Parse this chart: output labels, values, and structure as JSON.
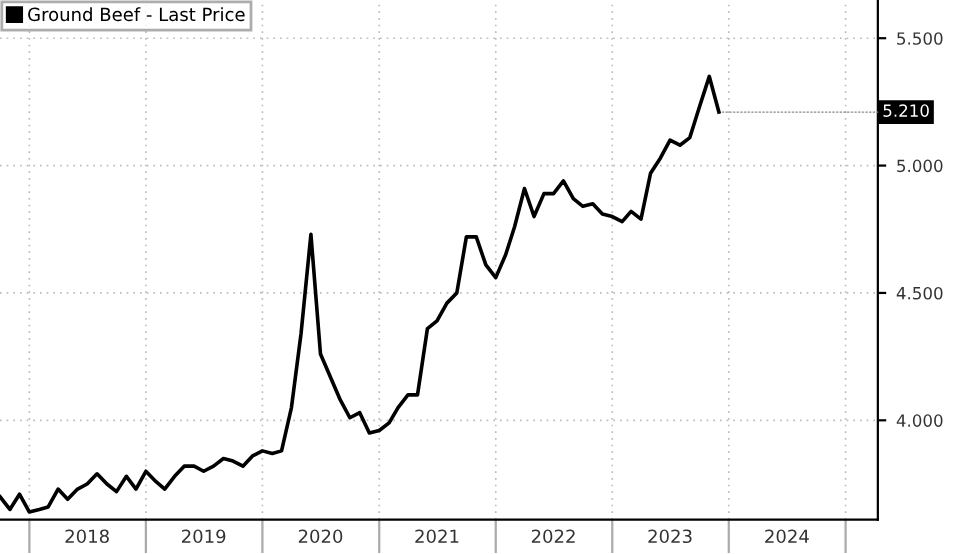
{
  "chart_data": {
    "type": "line",
    "x": [
      "2017-10",
      "2017-11",
      "2017-12",
      "2018-01",
      "2018-02",
      "2018-03",
      "2018-04",
      "2018-05",
      "2018-06",
      "2018-07",
      "2018-08",
      "2018-09",
      "2018-10",
      "2018-11",
      "2018-12",
      "2019-01",
      "2019-02",
      "2019-03",
      "2019-04",
      "2019-05",
      "2019-06",
      "2019-07",
      "2019-08",
      "2019-09",
      "2019-10",
      "2019-11",
      "2019-12",
      "2020-01",
      "2020-02",
      "2020-03",
      "2020-04",
      "2020-05",
      "2020-06",
      "2020-07",
      "2020-08",
      "2020-09",
      "2020-10",
      "2020-11",
      "2020-12",
      "2021-01",
      "2021-02",
      "2021-03",
      "2021-04",
      "2021-05",
      "2021-06",
      "2021-07",
      "2021-08",
      "2021-09",
      "2021-10",
      "2021-11",
      "2021-12",
      "2022-01",
      "2022-02",
      "2022-03",
      "2022-04",
      "2022-05",
      "2022-06",
      "2022-07",
      "2022-08",
      "2022-09",
      "2022-10",
      "2022-11",
      "2022-12",
      "2023-01",
      "2023-02",
      "2023-03",
      "2023-04",
      "2023-05",
      "2023-06",
      "2023-07",
      "2023-08",
      "2023-09",
      "2023-10",
      "2023-11",
      "2023-12"
    ],
    "series": [
      {
        "name": "Ground Beef - Last Price",
        "color": "#000000",
        "values": [
          3.7,
          3.65,
          3.71,
          3.64,
          3.65,
          3.66,
          3.73,
          3.69,
          3.73,
          3.75,
          3.79,
          3.75,
          3.72,
          3.78,
          3.73,
          3.8,
          3.76,
          3.73,
          3.78,
          3.82,
          3.82,
          3.8,
          3.82,
          3.85,
          3.84,
          3.82,
          3.86,
          3.88,
          3.87,
          3.88,
          4.05,
          4.34,
          4.73,
          4.26,
          4.17,
          4.08,
          4.01,
          4.03,
          3.95,
          3.96,
          3.99,
          4.05,
          4.1,
          4.1,
          4.36,
          4.39,
          4.46,
          4.5,
          4.72,
          4.72,
          4.61,
          4.56,
          4.65,
          4.76,
          4.91,
          4.8,
          4.89,
          4.89,
          4.94,
          4.87,
          4.84,
          4.85,
          4.81,
          4.8,
          4.78,
          4.82,
          4.79,
          4.97,
          5.03,
          5.1,
          5.08,
          5.11,
          5.23,
          5.35,
          5.21
        ]
      }
    ],
    "xlim": [
      "2017-10-01",
      "2025-04-12"
    ],
    "xticks": [
      {
        "value": "2018-01-01",
        "label": null
      },
      {
        "value": "2018-07-01",
        "label": "2018"
      },
      {
        "value": "2019-01-01",
        "label": null
      },
      {
        "value": "2019-07-01",
        "label": "2019"
      },
      {
        "value": "2020-01-01",
        "label": null
      },
      {
        "value": "2020-07-01",
        "label": "2020"
      },
      {
        "value": "2021-01-01",
        "label": null
      },
      {
        "value": "2021-07-01",
        "label": "2021"
      },
      {
        "value": "2022-01-01",
        "label": null
      },
      {
        "value": "2022-07-01",
        "label": "2022"
      },
      {
        "value": "2023-01-01",
        "label": null
      },
      {
        "value": "2023-07-01",
        "label": "2023"
      },
      {
        "value": "2024-01-01",
        "label": null
      },
      {
        "value": "2024-07-01",
        "label": "2024"
      },
      {
        "value": "2025-01-01",
        "label": null
      }
    ],
    "ylim": [
      3.61,
      5.65
    ],
    "yticks": [
      {
        "value": 4.0,
        "label": "4.000"
      },
      {
        "value": 4.5,
        "label": "4.500"
      },
      {
        "value": 5.0,
        "label": "5.000"
      },
      {
        "value": 5.5,
        "label": "5.500"
      }
    ],
    "annotations": [
      {
        "text": "5.210",
        "x": "2023-12",
        "y": 5.21
      }
    ],
    "grid": true,
    "legend": "top left",
    "marker": "none",
    "line_style": "solid"
  }
}
